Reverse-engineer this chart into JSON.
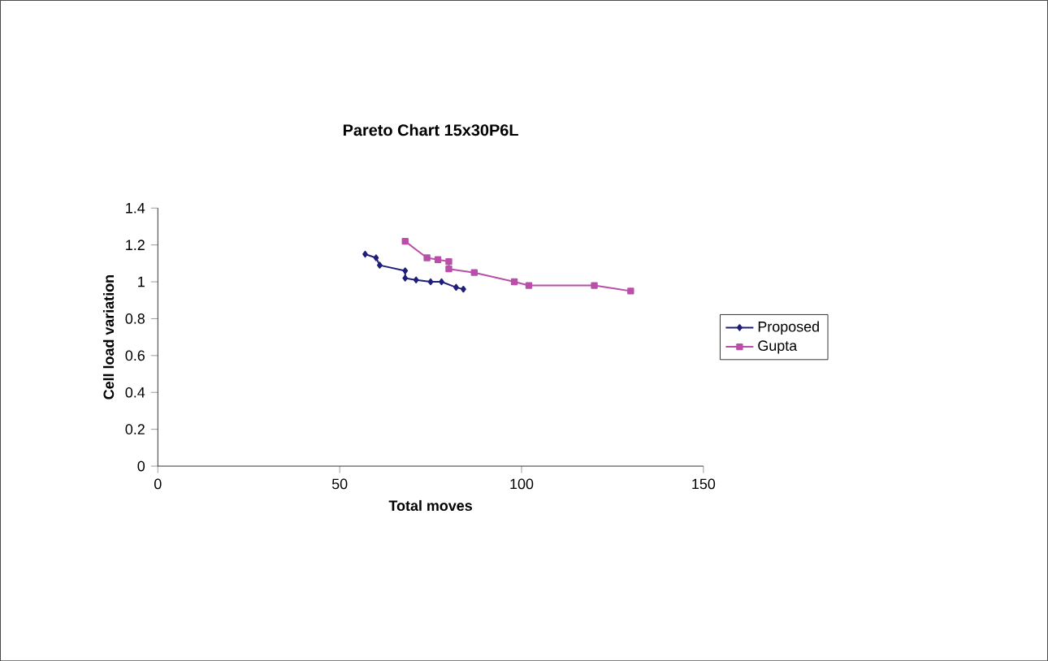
{
  "chart_data": {
    "type": "line",
    "title": "Pareto Chart 15x30P6L",
    "xlabel": "Total moves",
    "ylabel": "Cell load variation",
    "xlim": [
      0,
      150
    ],
    "xticks": [
      0,
      50,
      100,
      150
    ],
    "ylim": [
      0,
      1.4
    ],
    "yticks": [
      0,
      0.2,
      0.4,
      0.6,
      0.8,
      1,
      1.2,
      1.4
    ],
    "grid": false,
    "legend": "right",
    "series": [
      {
        "name": "Proposed",
        "color": "#1f1f7a",
        "marker": "diamond",
        "x": [
          57,
          60,
          61,
          68,
          68,
          71,
          75,
          78,
          82,
          84
        ],
        "values": [
          1.15,
          1.13,
          1.09,
          1.06,
          1.02,
          1.01,
          1.0,
          1.0,
          0.97,
          0.96
        ]
      },
      {
        "name": "Gupta",
        "color": "#b94fa8",
        "marker": "square",
        "x": [
          68,
          74,
          77,
          80,
          80,
          87,
          98,
          102,
          120,
          130
        ],
        "values": [
          1.22,
          1.13,
          1.12,
          1.11,
          1.07,
          1.05,
          1.0,
          0.98,
          0.98,
          0.95
        ]
      }
    ]
  }
}
